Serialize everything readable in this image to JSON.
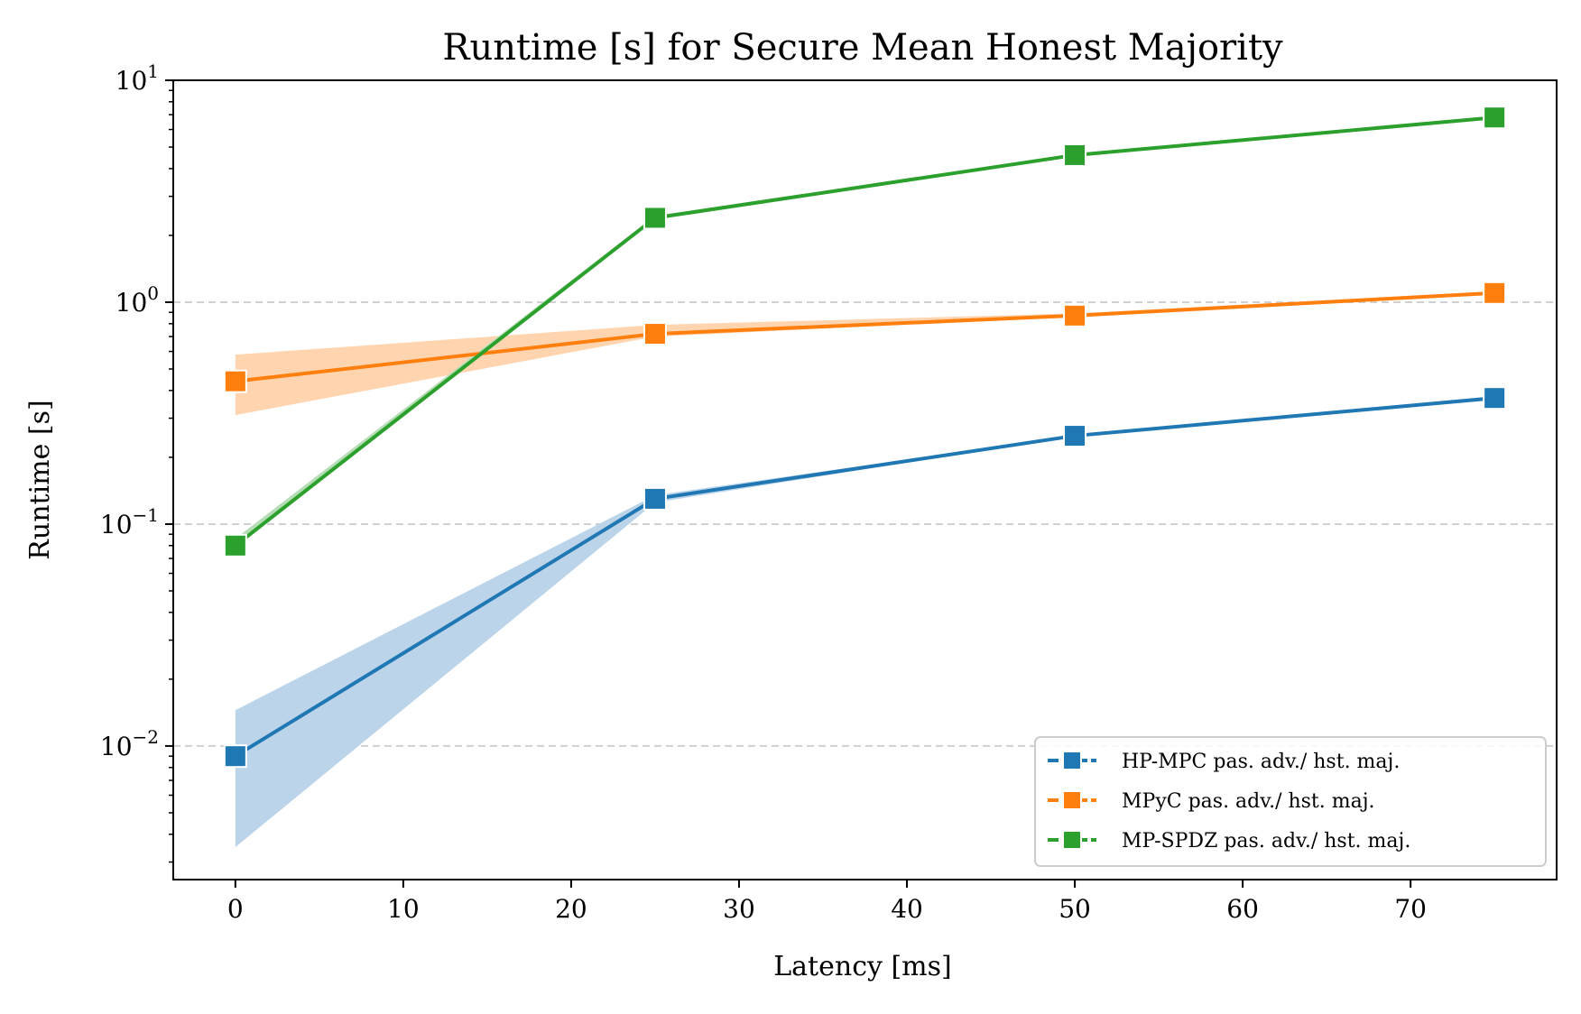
{
  "chart_data": {
    "type": "line",
    "title": "Runtime [s] for Secure Mean Honest Majority",
    "xlabel": "Latency [ms]",
    "ylabel": "Runtime [s]",
    "xlim": [
      -3.7,
      78.7
    ],
    "ylim": [
      0.0025,
      10
    ],
    "yscale": "log",
    "grid": "horizontal-major-dashed",
    "legend_position": "lower-right",
    "x_ticks": [
      0,
      10,
      20,
      30,
      40,
      50,
      60,
      70
    ],
    "x_tick_labels": [
      "0",
      "10",
      "20",
      "30",
      "40",
      "50",
      "60",
      "70"
    ],
    "y_ticks": [
      {
        "value": 0.01,
        "base": "10",
        "exp": "−2"
      },
      {
        "value": 0.1,
        "base": "10",
        "exp": "−1"
      },
      {
        "value": 1,
        "base": "10",
        "exp": "0"
      },
      {
        "value": 10,
        "base": "10",
        "exp": "1"
      }
    ],
    "x": [
      0,
      25,
      50,
      75
    ],
    "series": [
      {
        "name": "HP-MPC pas. adv./ hst. maj.",
        "color": "#1f77b4",
        "band_color": "#bcd4ea",
        "values": [
          0.009,
          0.13,
          0.25,
          0.37
        ],
        "lower": [
          0.0035,
          0.125,
          0.25,
          0.37
        ],
        "upper": [
          0.0145,
          0.135,
          0.25,
          0.37
        ]
      },
      {
        "name": "MPyC pas. adv./ hst. maj.",
        "color": "#ff7f0e",
        "band_color": "#ffd4ae",
        "values": [
          0.44,
          0.72,
          0.87,
          1.1
        ],
        "lower": [
          0.31,
          0.7,
          0.86,
          1.08
        ],
        "upper": [
          0.58,
          0.79,
          0.89,
          1.12
        ]
      },
      {
        "name": "MP-SPDZ pas. adv./ hst. maj.",
        "color": "#2ca02c",
        "band_color": "#b5ddb5",
        "values": [
          0.08,
          2.4,
          4.6,
          6.8
        ],
        "lower": [
          0.078,
          2.35,
          4.55,
          6.75
        ],
        "upper": [
          0.086,
          2.45,
          4.65,
          6.85
        ]
      }
    ]
  }
}
